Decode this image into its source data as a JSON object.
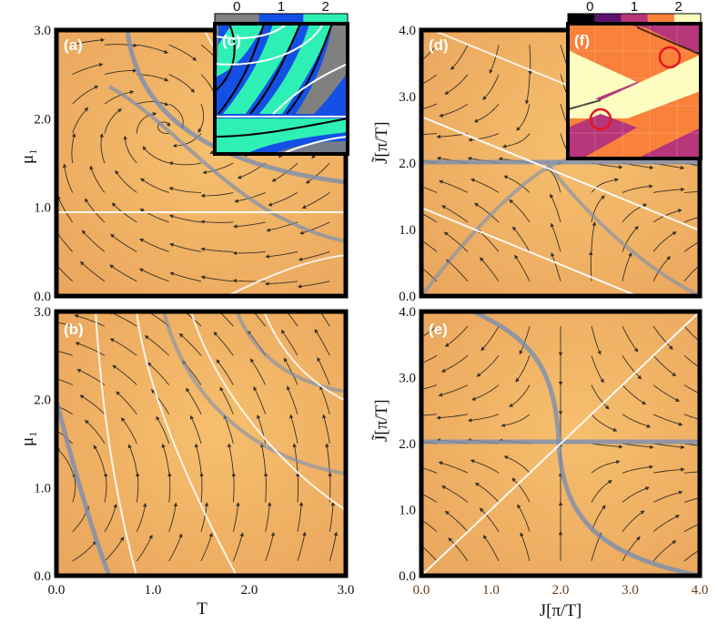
{
  "chart_data": [
    {
      "type": "streamplot",
      "panel_label": "(a)",
      "xlim": [
        0,
        3
      ],
      "ylim": [
        0,
        3
      ],
      "xticks": [],
      "yticks": [
        "0.0",
        "1.0",
        "2.0",
        "3.0"
      ],
      "xlabel": "",
      "ylabel": "μ₁",
      "bright_lines": [
        {
          "kind": "horizontal",
          "y": 0.95
        }
      ]
    },
    {
      "type": "streamplot",
      "panel_label": "(b)",
      "xlim": [
        0,
        3
      ],
      "ylim": [
        0,
        3
      ],
      "xticks": [
        "0.0",
        "1.0",
        "2.0",
        "3.0"
      ],
      "yticks": [
        "0.0",
        "1.0",
        "2.0",
        "3.0"
      ],
      "xlabel": "T",
      "ylabel": "μ₁"
    },
    {
      "type": "heatmap",
      "panel_label": "(c)",
      "inset_of": "(a)",
      "colorbar": {
        "ticks": [
          "0",
          "1",
          "2"
        ],
        "colors": [
          "#808080",
          "#1450e6",
          "#2ef0b4"
        ]
      }
    },
    {
      "type": "streamplot",
      "panel_label": "(d)",
      "xlim": [
        0,
        4
      ],
      "ylim": [
        0,
        4
      ],
      "xticks": [],
      "yticks": [
        "0.0",
        "1.0",
        "2.0",
        "3.0",
        "4.0"
      ],
      "xlabel": "",
      "ylabel": "J̃[π/T]",
      "bright_lines": [
        {
          "kind": "line",
          "from": [
            0,
            2.6
          ],
          "to": [
            4,
            0.7
          ]
        },
        {
          "kind": "line",
          "from": [
            0,
            1.3
          ],
          "to": [
            4,
            -0.6
          ]
        },
        {
          "kind": "horizontal",
          "y": 2.0
        }
      ]
    },
    {
      "type": "streamplot",
      "panel_label": "(e)",
      "xlim": [
        0,
        4
      ],
      "ylim": [
        0,
        4
      ],
      "xticks": [
        "0.0",
        "1.0",
        "2.0",
        "3.0",
        "4.0"
      ],
      "yticks": [
        "0.0",
        "1.0",
        "2.0",
        "3.0",
        "4.0"
      ],
      "xlabel": "J[π/T]",
      "ylabel": "J̃[π/T]",
      "bright_lines": [
        {
          "kind": "diagonal",
          "from": [
            0,
            0
          ],
          "to": [
            4,
            4
          ]
        },
        {
          "kind": "horizontal",
          "y": 2.0
        }
      ]
    },
    {
      "type": "heatmap",
      "panel_label": "(f)",
      "inset_of": "(d)",
      "colorbar": {
        "ticks": [
          "0",
          "1",
          "2"
        ],
        "colors": [
          "#000004",
          "#5c126e",
          "#b63679",
          "#f9813a",
          "#fcfdbf"
        ]
      },
      "markers": [
        {
          "shape": "circle",
          "color": "#e8141e"
        },
        {
          "shape": "circle",
          "color": "#e8141e"
        }
      ]
    }
  ],
  "colors": {
    "background": "#f2b366",
    "flow_lines": "#1a1a1a",
    "separatrix_dark": "#7a8fb0",
    "separatrix_bright": "#ffffff",
    "frame": "#000000"
  }
}
